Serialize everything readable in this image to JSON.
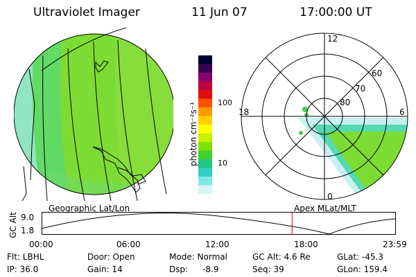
{
  "header": {
    "instrument": "Ultraviolet Imager",
    "date": "11 Jun 07",
    "time": "17:00:00 UT"
  },
  "colorbar": {
    "unit_label": "photon cm⁻²s⁻¹",
    "ticks": [
      "100",
      "10"
    ],
    "colors": [
      "#000033",
      "#3a0050",
      "#8a0070",
      "#c0003a",
      "#e01010",
      "#ff5000",
      "#ff9a00",
      "#ffd000",
      "#ffff00",
      "#c8f000",
      "#80e000",
      "#40d030",
      "#20c880",
      "#30d0c8",
      "#80e8e8",
      "#d8f4f4"
    ]
  },
  "left_panel": {
    "label": "Geographic Lat/Lon"
  },
  "right_panel": {
    "label": "Apex MLat/MLT",
    "mlt_labels": {
      "top": "12",
      "right": "6",
      "bottom": "0",
      "left": "18"
    },
    "mlat_labels": [
      "60",
      "70",
      "80"
    ]
  },
  "altitude_plot": {
    "ylabel": "GC Alt",
    "yticks": [
      "9.0",
      "1.8"
    ],
    "xticks": [
      "00:00",
      "06:00",
      "12:00",
      "18:00",
      "23:59"
    ],
    "current_time_marker_hour": 17.0
  },
  "info": {
    "flt": "Flt: LBHL",
    "ip": "IP: 36.0",
    "door": "Door: Open",
    "gain": "Gain: 14",
    "mode": "Mode: Normal",
    "dsp_label": "Dsp:",
    "dsp_value": "-8.9",
    "gc_alt": "GC Alt: 4.6 Re",
    "seq": "Seq: 39",
    "glat": "GLat: -45.3",
    "glon": "GLon: 159.4"
  }
}
